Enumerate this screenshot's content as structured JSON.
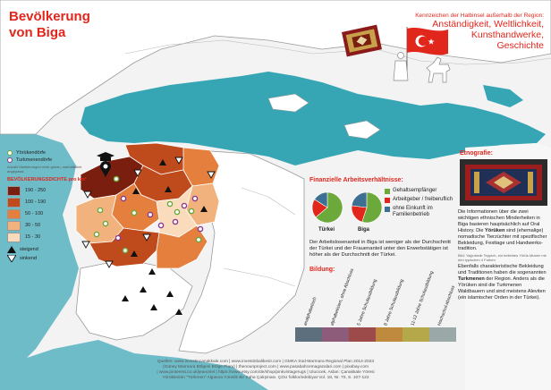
{
  "title": {
    "line1": "Bevölkerung",
    "line2": "von Biga"
  },
  "region_header": {
    "subtitle": "Kennzeichen der Halbinsel außerhalb der Region:",
    "line1": "Anständigkeit, Weltlichkeit,",
    "line2": "Kunsthandwerke,",
    "line3": "Geschichte"
  },
  "legend": {
    "yoruk_label": "Yörükendörfe",
    "turkmen_label": "Turkmenendörfe",
    "note": "Anzahl Markierungen nicht genau, maßstäblich angepasst",
    "density_title": "BEVÖLKERUNGSDICHTE pro km²",
    "density_classes": [
      {
        "label": "190 - 250",
        "color": "#7a1f0f"
      },
      {
        "label": "100 - 190",
        "color": "#bf4b1d"
      },
      {
        "label": "50 - 100",
        "color": "#e57f3d"
      },
      {
        "label": "30 - 50",
        "color": "#f2b27d"
      },
      {
        "label": "15 - 30",
        "color": "#fadcbc"
      }
    ],
    "rising_label": "steigend",
    "falling_label": "sinkend"
  },
  "finance": {
    "title": "Finanzielle Arbeitsverhältnisse:",
    "pies": [
      {
        "name": "Türkei",
        "slices": [
          0.64,
          0.2,
          0.16
        ]
      },
      {
        "name": "Biga",
        "slices": [
          0.55,
          0.22,
          0.23
        ]
      }
    ],
    "keys": [
      {
        "label": "Gehaltsempfänger",
        "color": "#6aa93a"
      },
      {
        "label": "Arbeitgeber / freiberuflich",
        "color": "#e1261c"
      },
      {
        "label": "ohne Einkunft im Familienbetrieb",
        "color": "#3d6f93"
      }
    ],
    "text": "Der Arbeitslosenanteil in Biga ist weniger als der Durchschnitt der Türkei und der Frauenanteil unter den Erwerbstätigen ist höher als der Durchschnitt der Türkei."
  },
  "education": {
    "title": "Bildung:",
    "levels": [
      {
        "label": "analphabetisch",
        "color": "#5d6f7c"
      },
      {
        "label": "alphabetisiert, ohne Abschluss",
        "color": "#8d5c7a"
      },
      {
        "label": "5 Jahre Schulausbildung",
        "color": "#9c4a4a"
      },
      {
        "label": "8 Jahre Schulausbildung",
        "color": "#c08a3e"
      },
      {
        "label": "11-12 Jahre Schulausbildung",
        "color": "#b5a84a"
      },
      {
        "label": "Hochschul-abschluss",
        "color": "#9aa9a8"
      }
    ]
  },
  "ethnography": {
    "title": "Etnografie:",
    "p1_a": "Die Informationen über die zwei wichtigen ethnischen Minderheiten in Biga basieren hauptsächlich auf Oral History. Die ",
    "p1_b": "Yörüken",
    "p1_c": " sind (ehemalige) nomadische Tierzüchter mit spezifischer Bekleidung, Festtage und Handwerks-tradition.",
    "note": "Bild: Yağcıbedir Teppich, ein beliebtes Yörük-Muster mit den typischen 4 Farben",
    "p2_a": "Ebenfalls charakteristische Bekleidung und Traditionen haben die sogenannten ",
    "p2_b": "Turkmenen",
    "p2_c": " der Region. Anders als die Yörüken sind die Turkmenen Waldbauern und sind meistens Aleviten (ein islamischer Orden in der Türkei)."
  },
  "sources": {
    "line1": "Quellen: www.investincanakkale.com | www.investinbalikesir.com | GMKA Süd-Marmara Regional Plan 2014-2023",
    "line2": "(Güney Marmara Bölgesi Bölge Planı) | thenounproject.com | www.pasabahcemagazalari.com | pixabay.com",
    "line3": "| www.pinterest.co.uk/jeanoriel | https://www.etsy.com/de/shop/pinkvintagerugs | Ulucicek, Aslan: Çanakkale Yöresi",
    "line4": "Yörüklerinin \"Türkmen\" Algısına Yönelik Bir Saha Çalışması. ÇDU folklor/edebiyat Vol. 18, Nr. 70, S. 107-122"
  }
}
